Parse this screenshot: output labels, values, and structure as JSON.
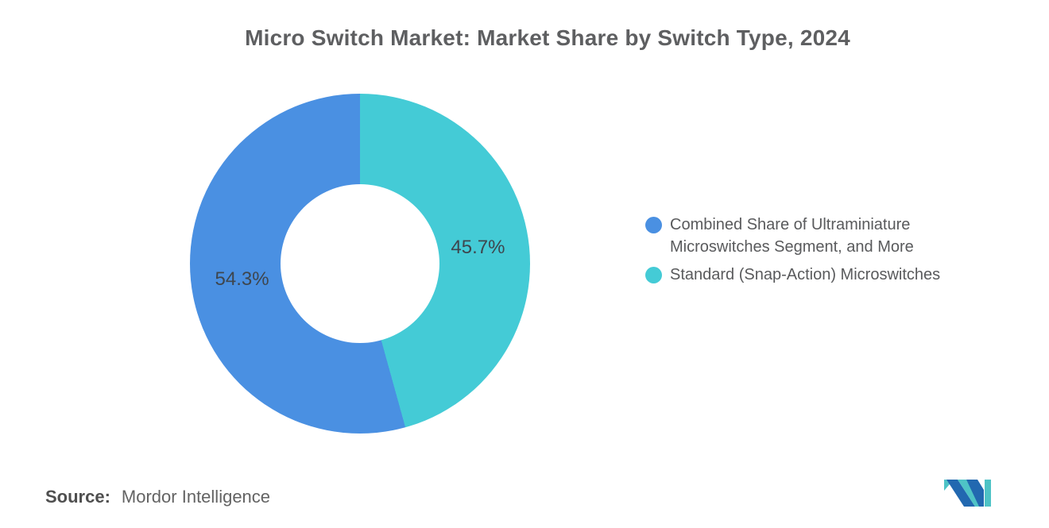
{
  "source": {
    "label": "Source:",
    "value": "Mordor Intelligence"
  },
  "logo": {
    "name": "mordor-intelligence-logo",
    "blue": "#2268b0",
    "teal": "#4ec3c6"
  },
  "chart_data": {
    "type": "pie",
    "subtype": "donut",
    "title": "Micro Switch Market: Market Share by Switch Type, 2024",
    "unit": "%",
    "segments": [
      {
        "label": "Combined Share of Ultraminiature Microswitches Segment, and More",
        "value": 54.3,
        "display": "54.3%",
        "color": "#4a90e2"
      },
      {
        "label": "Standard (Snap-Action) Microswitches",
        "value": 45.7,
        "display": "45.7%",
        "color": "#44cbd6"
      }
    ],
    "clockwise_order": [
      1,
      0
    ],
    "start_angle_deg": 0,
    "inner_radius_ratio": 0.47,
    "legend_position": "right",
    "background": "#ffffff",
    "label_color": "#3e464e",
    "title_color": "#5e5f61"
  }
}
